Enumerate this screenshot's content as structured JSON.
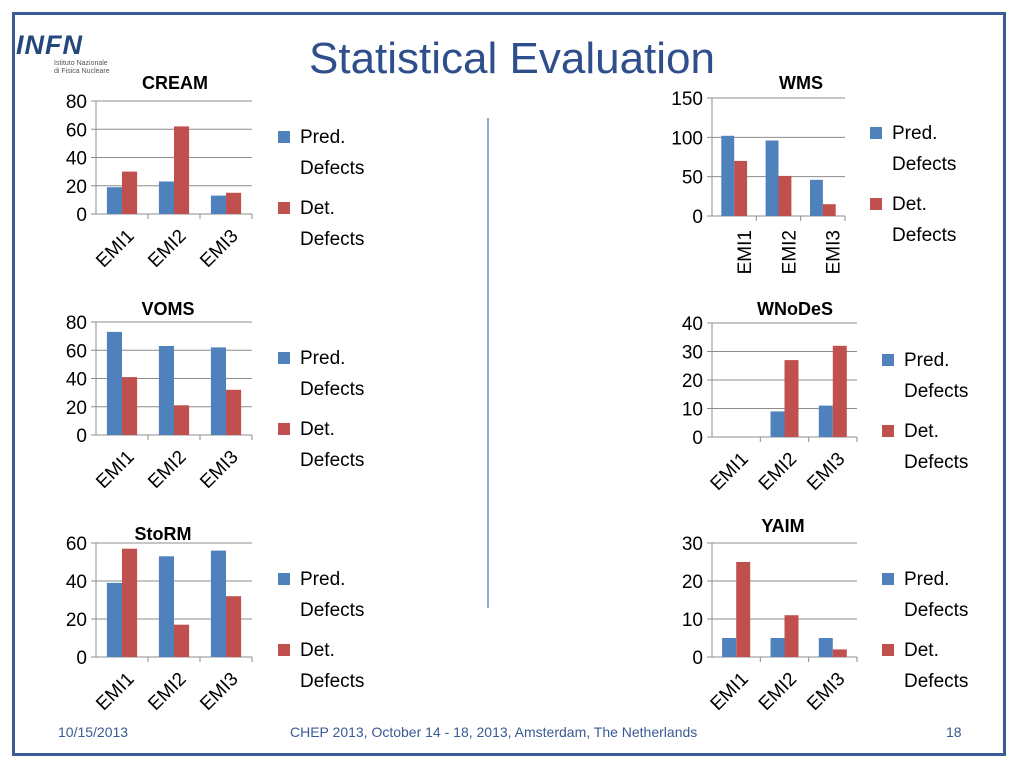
{
  "slide": {
    "title": "Statistical Evaluation",
    "logo": {
      "name": "INFN",
      "subtitle_line1": "Istituto Nazionale",
      "subtitle_line2": "di Fisica Nucleare"
    },
    "footer": {
      "date": "10/15/2013",
      "center": "CHEP 2013, October 14 - 18, 2013, Amsterdam, The Netherlands",
      "page": "18"
    }
  },
  "colors": {
    "pred": "#4f81bd",
    "det": "#c0504d",
    "accent": "#2f4f8c",
    "frame": "#3c5a96"
  },
  "chart_data": [
    {
      "type": "bar",
      "title": "CREAM",
      "categories": [
        "EMI1",
        "EMI2",
        "EMI3"
      ],
      "series": [
        {
          "name": "Pred. Defects",
          "values": [
            19,
            23,
            13
          ]
        },
        {
          "name": "Det. Defects",
          "values": [
            30,
            62,
            15
          ]
        }
      ],
      "ylim": [
        0,
        80
      ],
      "yticks": [
        0,
        20,
        40,
        60,
        80
      ],
      "grid": true,
      "legend": "right",
      "xlabel_rotation": "diagonal"
    },
    {
      "type": "bar",
      "title": "WMS",
      "categories": [
        "EMI1",
        "EMI2",
        "EMI3"
      ],
      "series": [
        {
          "name": "Pred. Defects",
          "values": [
            102,
            96,
            46
          ]
        },
        {
          "name": "Det. Defects",
          "values": [
            70,
            51,
            15
          ]
        }
      ],
      "ylim": [
        0,
        150
      ],
      "yticks": [
        0,
        50,
        100,
        150
      ],
      "grid": true,
      "legend": "right",
      "xlabel_rotation": "vertical"
    },
    {
      "type": "bar",
      "title": "VOMS",
      "categories": [
        "EMI1",
        "EMI2",
        "EMI3"
      ],
      "series": [
        {
          "name": "Pred. Defects",
          "values": [
            73,
            63,
            62
          ]
        },
        {
          "name": "Det. Defects",
          "values": [
            41,
            21,
            32
          ]
        }
      ],
      "ylim": [
        0,
        80
      ],
      "yticks": [
        0,
        20,
        40,
        60,
        80
      ],
      "grid": true,
      "legend": "right",
      "xlabel_rotation": "diagonal"
    },
    {
      "type": "bar",
      "title": "WNoDeS",
      "categories": [
        "EMI1",
        "EMI2",
        "EMI3"
      ],
      "series": [
        {
          "name": "Pred. Defects",
          "values": [
            0,
            9,
            11
          ]
        },
        {
          "name": "Det. Defects",
          "values": [
            0,
            27,
            32
          ]
        }
      ],
      "ylim": [
        0,
        40
      ],
      "yticks": [
        0,
        10,
        20,
        30,
        40
      ],
      "grid": true,
      "legend": "right",
      "xlabel_rotation": "diagonal"
    },
    {
      "type": "bar",
      "title": "StoRM",
      "categories": [
        "EMI1",
        "EMI2",
        "EMI3"
      ],
      "series": [
        {
          "name": "Pred. Defects",
          "values": [
            39,
            53,
            56
          ]
        },
        {
          "name": "Det. Defects",
          "values": [
            57,
            17,
            32
          ]
        }
      ],
      "ylim": [
        0,
        60
      ],
      "yticks": [
        0,
        20,
        40,
        60
      ],
      "grid": true,
      "legend": "right",
      "xlabel_rotation": "diagonal"
    },
    {
      "type": "bar",
      "title": "YAIM",
      "categories": [
        "EMI1",
        "EMI2",
        "EMI3"
      ],
      "series": [
        {
          "name": "Pred. Defects",
          "values": [
            5,
            5,
            5
          ]
        },
        {
          "name": "Det. Defects",
          "values": [
            25,
            11,
            2
          ]
        }
      ],
      "ylim": [
        0,
        30
      ],
      "yticks": [
        0,
        10,
        20,
        30
      ],
      "grid": true,
      "legend": "right",
      "xlabel_rotation": "diagonal"
    }
  ]
}
